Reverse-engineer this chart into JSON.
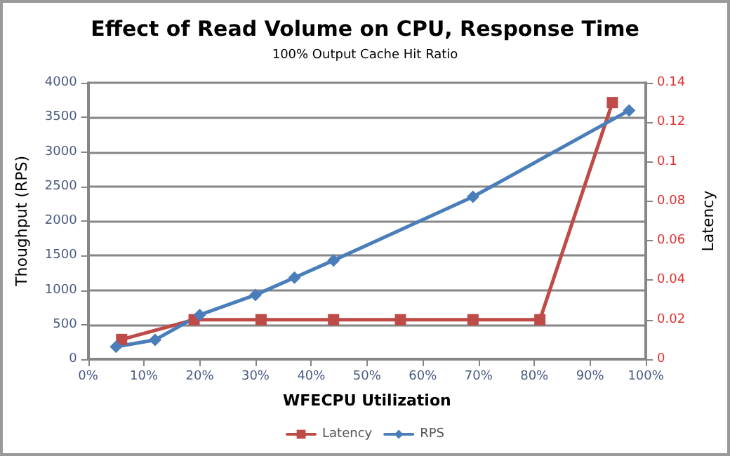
{
  "chart_data": {
    "type": "line",
    "title": "Effect of Read Volume on CPU, Response Time",
    "subtitle": "100% Output Cache Hit Ratio",
    "xlabel": "WFECPU Utilization",
    "ylabel": "Thoughput (RPS)",
    "y2label": "Latency",
    "xlim": [
      0,
      100
    ],
    "xticks": [
      {
        "value": 0,
        "label": "0%"
      },
      {
        "value": 10,
        "label": "10%"
      },
      {
        "value": 20,
        "label": "20%"
      },
      {
        "value": 30,
        "label": "30%"
      },
      {
        "value": 40,
        "label": "40%"
      },
      {
        "value": 50,
        "label": "50%"
      },
      {
        "value": 60,
        "label": "60%"
      },
      {
        "value": 70,
        "label": "70%"
      },
      {
        "value": 80,
        "label": "80%"
      },
      {
        "value": 90,
        "label": "90%"
      },
      {
        "value": 100,
        "label": "100%"
      }
    ],
    "ylim": [
      0,
      4000
    ],
    "yticks": [
      0,
      500,
      1000,
      1500,
      2000,
      2500,
      3000,
      3500,
      4000
    ],
    "y2lim": [
      0,
      0.14
    ],
    "y2ticks": [
      0,
      0.02,
      0.04,
      0.06,
      0.08,
      0.1,
      0.12,
      0.14
    ],
    "grid": "y",
    "legend": "bottom",
    "series": [
      {
        "name": "Latency",
        "color": "#be4b48",
        "marker": "square",
        "axis": "y2",
        "x": [
          6,
          19,
          31,
          44,
          56,
          69,
          81,
          94
        ],
        "values": [
          0.01,
          0.02,
          0.02,
          0.02,
          0.02,
          0.02,
          0.02,
          0.13
        ]
      },
      {
        "name": "RPS",
        "color": "#4a7ebb",
        "marker": "diamond",
        "axis": "y",
        "x": [
          5,
          12,
          20,
          30,
          37,
          44,
          69,
          97
        ],
        "values": [
          180,
          280,
          640,
          930,
          1180,
          1430,
          2350,
          3600
        ]
      }
    ]
  }
}
